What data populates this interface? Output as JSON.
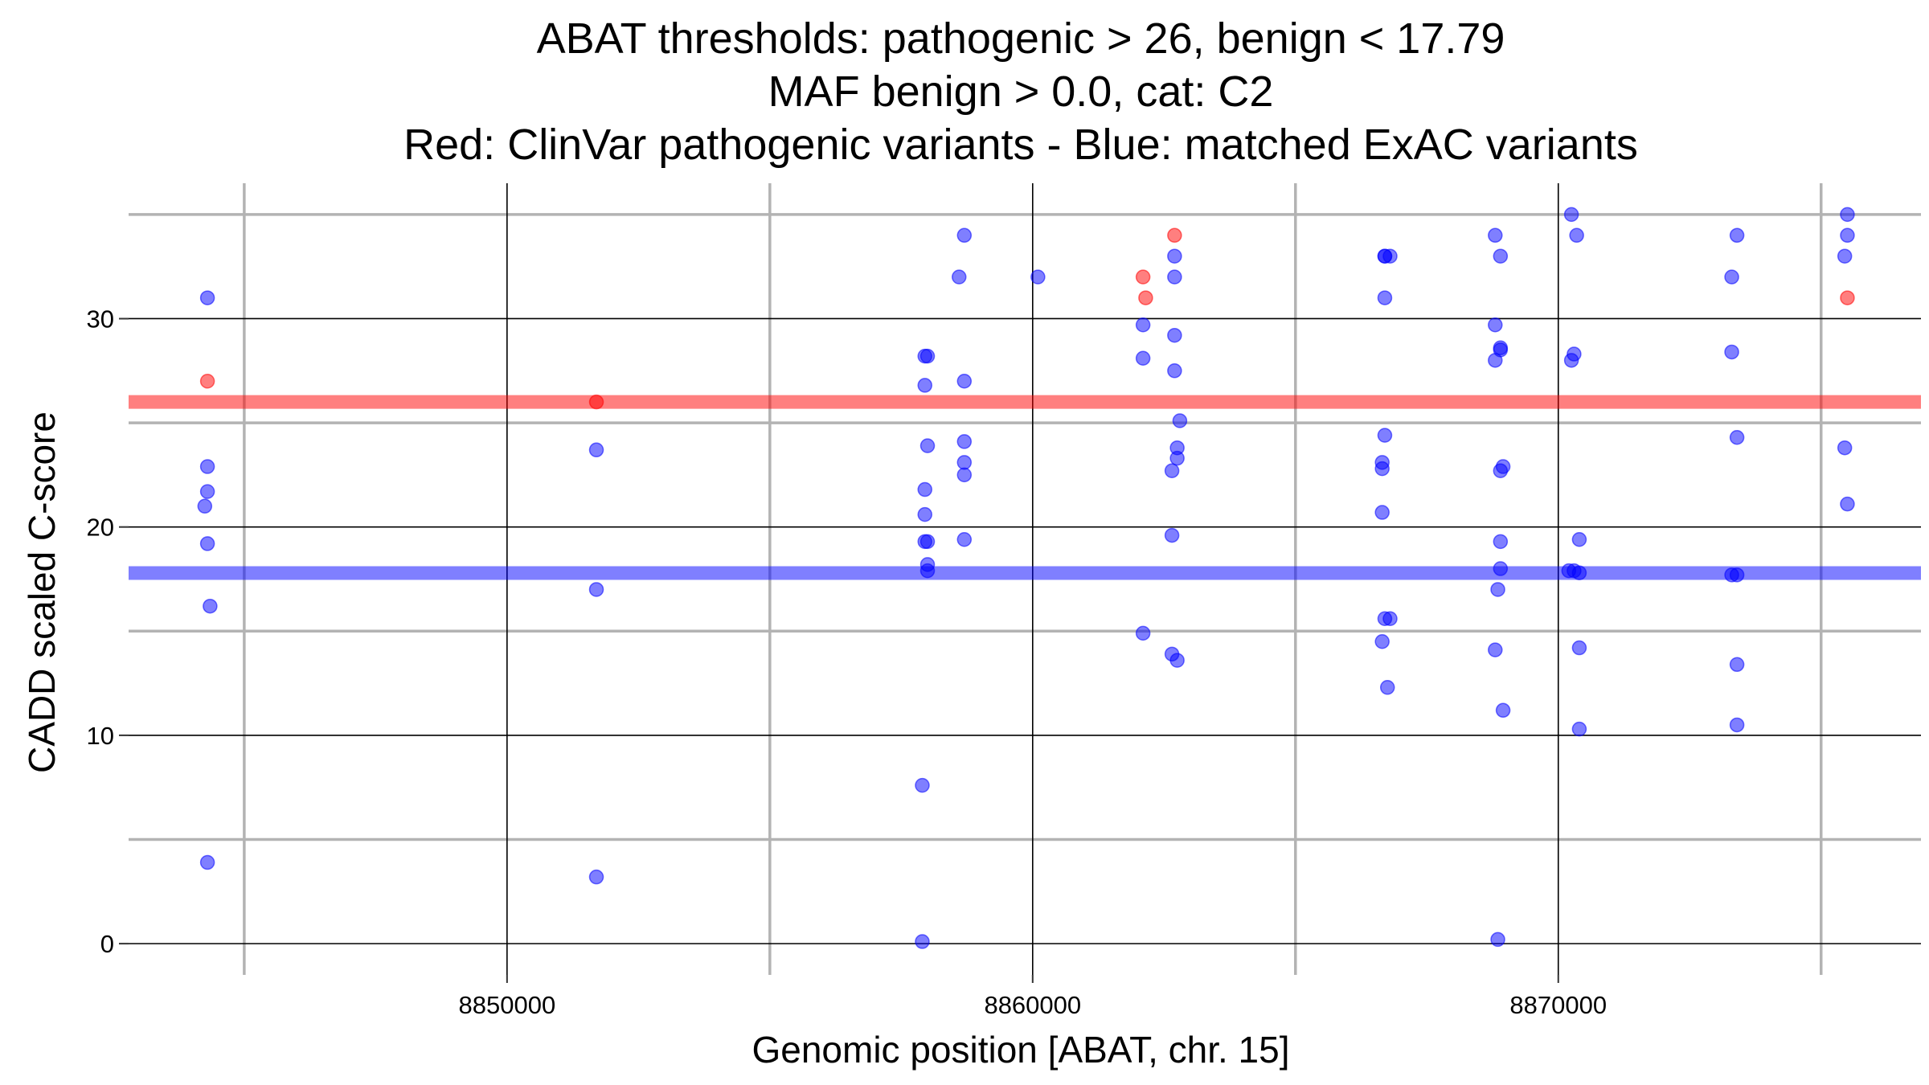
{
  "chart_data": {
    "type": "scatter",
    "title_lines": [
      "ABAT thresholds: pathogenic > 26, benign < 17.79",
      "MAF benign > 0.0, cat: C2",
      "Red: ClinVar pathogenic variants - Blue: matched ExAC variants"
    ],
    "xlabel": "Genomic position [ABAT, chr. 15]",
    "ylabel": "CADD scaled C-score",
    "xlim": [
      8842800,
      8876900
    ],
    "ylim": [
      -1.5,
      36.5
    ],
    "x_major_ticks": [
      8850000,
      8860000,
      8870000
    ],
    "x_minor_ticks": [
      8845000,
      8855000,
      8865000,
      8875000
    ],
    "y_major_ticks": [
      0,
      10,
      20,
      30
    ],
    "y_minor_ticks": [
      5,
      15,
      25,
      35
    ],
    "x_tick_labels": [
      "8850000",
      "8860000",
      "8870000"
    ],
    "y_tick_labels": [
      "0",
      "10",
      "20",
      "30"
    ],
    "grid": true,
    "thresholds": [
      {
        "name": "pathogenic",
        "value": 26,
        "color": "#ff0000"
      },
      {
        "name": "benign",
        "value": 17.79,
        "color": "#0000ff"
      }
    ],
    "colors": {
      "pathogenic": "#ff0000",
      "benign": "#0000ff",
      "major_grid": "#000000",
      "minor_grid": "#b3b3b3"
    },
    "series": [
      {
        "group": "pathogenic",
        "points": [
          [
            8844300,
            27
          ],
          [
            8851700,
            26
          ],
          [
            8862100,
            32
          ],
          [
            8862150,
            31
          ],
          [
            8862700,
            34
          ],
          [
            8875500,
            31
          ]
        ]
      },
      {
        "group": "benign",
        "points": [
          [
            8844300,
            31
          ],
          [
            8844300,
            22.9
          ],
          [
            8844300,
            21.7
          ],
          [
            8844250,
            21
          ],
          [
            8844300,
            19.2
          ],
          [
            8844350,
            16.2
          ],
          [
            8844300,
            3.9
          ],
          [
            8851700,
            23.7
          ],
          [
            8851700,
            17
          ],
          [
            8851700,
            3.2
          ],
          [
            8857950,
            28.2
          ],
          [
            8858000,
            28.2
          ],
          [
            8857950,
            26.8
          ],
          [
            8858000,
            23.9
          ],
          [
            8857950,
            21.8
          ],
          [
            8857950,
            20.6
          ],
          [
            8857950,
            19.3
          ],
          [
            8858000,
            19.3
          ],
          [
            8858000,
            18.2
          ],
          [
            8858000,
            17.9
          ],
          [
            8857900,
            7.6
          ],
          [
            8857900,
            0.1
          ],
          [
            8858700,
            34
          ],
          [
            8858600,
            32
          ],
          [
            8858700,
            27
          ],
          [
            8858700,
            24.1
          ],
          [
            8858700,
            23.1
          ],
          [
            8858700,
            22.5
          ],
          [
            8858700,
            19.4
          ],
          [
            8860100,
            32
          ],
          [
            8862100,
            29.7
          ],
          [
            8862100,
            28.1
          ],
          [
            8862100,
            14.9
          ],
          [
            8862700,
            33
          ],
          [
            8862700,
            32
          ],
          [
            8862700,
            29.2
          ],
          [
            8862700,
            27.5
          ],
          [
            8862800,
            25.1
          ],
          [
            8862750,
            23.8
          ],
          [
            8862750,
            23.3
          ],
          [
            8862650,
            22.7
          ],
          [
            8862650,
            19.6
          ],
          [
            8862650,
            13.9
          ],
          [
            8862750,
            13.6
          ],
          [
            8866700,
            33
          ],
          [
            8866800,
            33
          ],
          [
            8866700,
            33
          ],
          [
            8866700,
            31
          ],
          [
            8866700,
            24.4
          ],
          [
            8866650,
            23.1
          ],
          [
            8866650,
            22.8
          ],
          [
            8866650,
            20.7
          ],
          [
            8866700,
            15.6
          ],
          [
            8866800,
            15.6
          ],
          [
            8866650,
            14.5
          ],
          [
            8866750,
            12.3
          ],
          [
            8868800,
            34
          ],
          [
            8868900,
            33
          ],
          [
            8868800,
            29.7
          ],
          [
            8868900,
            28.6
          ],
          [
            8868900,
            28.5
          ],
          [
            8868800,
            28
          ],
          [
            8868950,
            22.9
          ],
          [
            8868900,
            22.7
          ],
          [
            8868900,
            19.3
          ],
          [
            8868900,
            18
          ],
          [
            8868850,
            17
          ],
          [
            8868800,
            14.1
          ],
          [
            8868950,
            11.2
          ],
          [
            8868850,
            0.2
          ],
          [
            8870250,
            35
          ],
          [
            8870350,
            34
          ],
          [
            8870300,
            28.3
          ],
          [
            8870250,
            28
          ],
          [
            8870400,
            19.4
          ],
          [
            8870200,
            17.9
          ],
          [
            8870300,
            17.9
          ],
          [
            8870400,
            17.8
          ],
          [
            8870400,
            14.2
          ],
          [
            8870400,
            10.3
          ],
          [
            8873400,
            34
          ],
          [
            8873300,
            32
          ],
          [
            8873300,
            28.4
          ],
          [
            8873400,
            24.3
          ],
          [
            8873300,
            17.7
          ],
          [
            8873400,
            17.7
          ],
          [
            8873400,
            13.4
          ],
          [
            8873400,
            10.5
          ],
          [
            8875500,
            35
          ],
          [
            8875500,
            34
          ],
          [
            8875450,
            33
          ],
          [
            8875450,
            23.8
          ],
          [
            8875500,
            21.1
          ]
        ]
      }
    ]
  }
}
